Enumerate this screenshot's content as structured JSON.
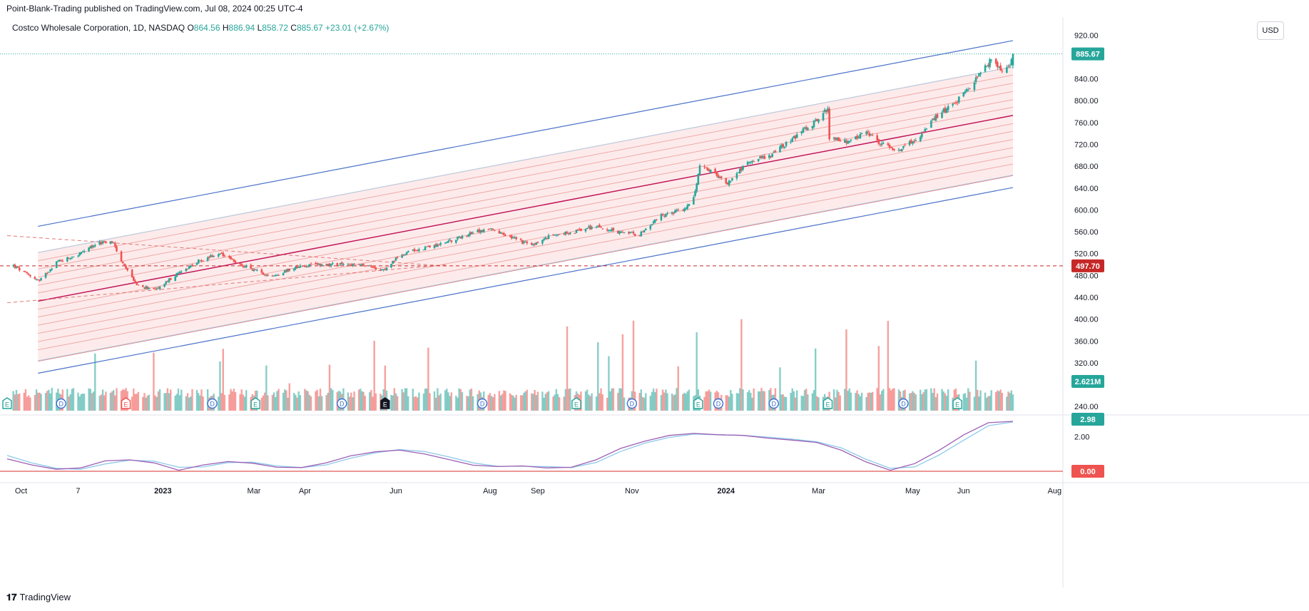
{
  "header": {
    "published_text": "Point-Blank-Trading published on TradingView.com, Jul 08, 2024 00:25 UTC-4"
  },
  "legend": {
    "symbol": "Costco Wholesale Corporation, 1D, NASDAQ",
    "open_label": "O",
    "open": "864.56",
    "high_label": "H",
    "high": "886.94",
    "low_label": "L",
    "low": "858.72",
    "close_label": "C",
    "close": "885.67",
    "change": "+23.01 (+2.67%)"
  },
  "currency": "USD",
  "footer": {
    "brand": "TradingView"
  },
  "colors": {
    "up": "#26a69a",
    "down": "#ef5350",
    "channel_outer": "#4a72c9",
    "channel_inner": "#b3d4ea",
    "regression": "#c2185b",
    "fill": "#fde8e8",
    "oscillator_a": "#9c5fb5",
    "oscillator_b": "#8ec9e8"
  },
  "chart_data": {
    "type": "candlestick",
    "price_axis": {
      "ticks": [
        "920.00",
        "880.00",
        "840.00",
        "800.00",
        "760.00",
        "720.00",
        "680.00",
        "640.00",
        "600.00",
        "560.00",
        "520.00",
        "480.00",
        "440.00",
        "400.00",
        "360.00",
        "320.00",
        "280.00",
        "240.00"
      ],
      "range": [
        220,
        935
      ]
    },
    "time_axis": {
      "ticks": [
        "Oct",
        "7",
        "2023",
        "Mar",
        "Apr",
        "Jun",
        "Aug",
        "Sep",
        "Nov",
        "2024",
        "Mar",
        "May",
        "Jun",
        "Aug"
      ]
    },
    "price_path": [
      [
        "2022-09-26",
        498
      ],
      [
        "2022-10-03",
        485
      ],
      [
        "2022-10-13",
        470
      ],
      [
        "2022-10-24",
        505
      ],
      [
        "2022-11-07",
        518
      ],
      [
        "2022-11-21",
        540
      ],
      [
        "2022-11-30",
        540
      ],
      [
        "2022-12-05",
        505
      ],
      [
        "2022-12-16",
        460
      ],
      [
        "2022-12-28",
        455
      ],
      [
        "2023-01-09",
        480
      ],
      [
        "2023-01-23",
        505
      ],
      [
        "2023-02-06",
        520
      ],
      [
        "2023-02-20",
        500
      ],
      [
        "2023-03-06",
        485
      ],
      [
        "2023-03-13",
        478
      ],
      [
        "2023-03-27",
        495
      ],
      [
        "2023-04-10",
        500
      ],
      [
        "2023-04-24",
        500
      ],
      [
        "2023-05-08",
        500
      ],
      [
        "2023-05-22",
        492
      ],
      [
        "2023-05-26",
        495
      ],
      [
        "2023-06-05",
        520
      ],
      [
        "2023-06-19",
        530
      ],
      [
        "2023-07-03",
        540
      ],
      [
        "2023-07-17",
        555
      ],
      [
        "2023-07-31",
        565
      ],
      [
        "2023-08-14",
        550
      ],
      [
        "2023-08-28",
        535
      ],
      [
        "2023-09-11",
        555
      ],
      [
        "2023-09-25",
        560
      ],
      [
        "2023-10-09",
        570
      ],
      [
        "2023-10-23",
        560
      ],
      [
        "2023-11-06",
        555
      ],
      [
        "2023-11-20",
        590
      ],
      [
        "2023-12-04",
        600
      ],
      [
        "2023-12-11",
        620
      ],
      [
        "2023-12-15",
        680
      ],
      [
        "2023-12-22",
        670
      ],
      [
        "2024-01-02",
        650
      ],
      [
        "2024-01-16",
        690
      ],
      [
        "2024-01-30",
        700
      ],
      [
        "2024-02-13",
        730
      ],
      [
        "2024-02-27",
        760
      ],
      [
        "2024-03-07",
        785
      ],
      [
        "2024-03-08",
        730
      ],
      [
        "2024-03-18",
        725
      ],
      [
        "2024-04-02",
        740
      ],
      [
        "2024-04-10",
        720
      ],
      [
        "2024-04-22",
        710
      ],
      [
        "2024-05-06",
        735
      ],
      [
        "2024-05-16",
        770
      ],
      [
        "2024-05-30",
        800
      ],
      [
        "2024-06-10",
        835
      ],
      [
        "2024-06-17",
        860
      ],
      [
        "2024-06-21",
        875
      ],
      [
        "2024-06-28",
        855
      ],
      [
        "2024-07-03",
        863
      ],
      [
        "2024-07-05",
        885.67
      ]
    ],
    "price_tags": {
      "last": "885.67",
      "reference": "497.70"
    },
    "reference_level": 497.7,
    "volume_tag": "2.621M",
    "oscillator": {
      "tags": [
        "2.98",
        "0.00"
      ],
      "tick": "2.00",
      "zero_level": 0,
      "series_a": [
        [
          0,
          3.7
        ],
        [
          4,
          1.9
        ],
        [
          8,
          0.6
        ],
        [
          12,
          1.0
        ],
        [
          16,
          3.1
        ],
        [
          20,
          3.4
        ],
        [
          24,
          2.5
        ],
        [
          28,
          0.3
        ],
        [
          32,
          1.9
        ],
        [
          36,
          2.9
        ],
        [
          40,
          2.4
        ],
        [
          44,
          1.2
        ],
        [
          48,
          1.1
        ],
        [
          52,
          2.5
        ],
        [
          56,
          4.6
        ],
        [
          60,
          5.8
        ],
        [
          64,
          6.3
        ],
        [
          68,
          5.2
        ],
        [
          72,
          3.5
        ],
        [
          76,
          1.8
        ],
        [
          80,
          1.4
        ],
        [
          84,
          1.6
        ],
        [
          88,
          1.0
        ],
        [
          92,
          1.2
        ],
        [
          96,
          3.4
        ],
        [
          100,
          6.8
        ],
        [
          104,
          9.0
        ],
        [
          108,
          10.7
        ],
        [
          112,
          11.3
        ],
        [
          116,
          10.9
        ],
        [
          120,
          10.7
        ],
        [
          124,
          9.9
        ],
        [
          128,
          9.3
        ],
        [
          132,
          8.6
        ],
        [
          136,
          6.3
        ],
        [
          140,
          2.8
        ],
        [
          144,
          0.3
        ],
        [
          148,
          2.3
        ],
        [
          152,
          6.3
        ],
        [
          156,
          10.9
        ],
        [
          160,
          14.5
        ],
        [
          164,
          14.9
        ]
      ],
      "series_b": [
        [
          0,
          4.7
        ],
        [
          4,
          2.5
        ],
        [
          8,
          0.9
        ],
        [
          12,
          0.6
        ],
        [
          16,
          2.2
        ],
        [
          20,
          3.3
        ],
        [
          24,
          3.0
        ],
        [
          28,
          1.2
        ],
        [
          32,
          1.3
        ],
        [
          36,
          2.6
        ],
        [
          40,
          2.7
        ],
        [
          44,
          1.6
        ],
        [
          48,
          1.1
        ],
        [
          52,
          1.9
        ],
        [
          56,
          3.9
        ],
        [
          60,
          5.5
        ],
        [
          64,
          6.5
        ],
        [
          68,
          5.9
        ],
        [
          72,
          4.3
        ],
        [
          76,
          2.5
        ],
        [
          80,
          1.5
        ],
        [
          84,
          1.5
        ],
        [
          88,
          1.4
        ],
        [
          92,
          1.1
        ],
        [
          96,
          2.6
        ],
        [
          100,
          5.9
        ],
        [
          104,
          8.4
        ],
        [
          108,
          10.1
        ],
        [
          112,
          11.1
        ],
        [
          116,
          10.9
        ],
        [
          120,
          10.7
        ],
        [
          124,
          10.2
        ],
        [
          128,
          9.6
        ],
        [
          132,
          8.8
        ],
        [
          136,
          7.0
        ],
        [
          140,
          3.6
        ],
        [
          144,
          0.9
        ],
        [
          148,
          1.3
        ],
        [
          152,
          4.9
        ],
        [
          156,
          9.3
        ],
        [
          160,
          13.6
        ],
        [
          164,
          14.7
        ]
      ]
    },
    "events": [
      {
        "t": "2022-09-22",
        "kind": "E",
        "c": "#26a69a"
      },
      {
        "t": "2022-10-27",
        "kind": "D",
        "c": "#3f6fd1"
      },
      {
        "t": "2022-12-08",
        "kind": "E",
        "c": "#ef5350"
      },
      {
        "t": "2023-02-02",
        "kind": "D",
        "c": "#3f6fd1"
      },
      {
        "t": "2023-03-02",
        "kind": "E",
        "c": "#26a69a"
      },
      {
        "t": "2023-04-27",
        "kind": "D",
        "c": "#3f6fd1"
      },
      {
        "t": "2023-05-25",
        "kind": "E",
        "c": "#131722"
      },
      {
        "t": "2023-07-27",
        "kind": "D",
        "c": "#3f6fd1"
      },
      {
        "t": "2023-09-26",
        "kind": "E",
        "c": "#26a69a"
      },
      {
        "t": "2023-11-01",
        "kind": "D",
        "c": "#3f6fd1"
      },
      {
        "t": "2023-12-14",
        "kind": "E",
        "c": "#26a69a"
      },
      {
        "t": "2023-12-27",
        "kind": "D",
        "c": "#3f6fd1"
      },
      {
        "t": "2024-02-01",
        "kind": "D",
        "c": "#3f6fd1"
      },
      {
        "t": "2024-03-07",
        "kind": "E",
        "c": "#26a69a"
      },
      {
        "t": "2024-04-25",
        "kind": "D",
        "c": "#3f6fd1"
      },
      {
        "t": "2024-05-30",
        "kind": "E",
        "c": "#26a69a"
      }
    ],
    "channel": {
      "regression_start": [
        "2022-10-12",
        433
      ],
      "regression_end": [
        "2024-07-05",
        773
      ],
      "bands": [
        -110,
        -89,
        -74,
        -59,
        -44,
        -29,
        -15,
        15,
        29,
        44,
        59,
        74,
        89
      ],
      "inner_blue": [
        -109,
        89
      ],
      "outer_blue": [
        -132,
        137
      ]
    },
    "triangle_lines": [
      {
        "from": [
          "2022-09-22",
          553
        ],
        "to": [
          "2023-07-05",
          497
        ]
      },
      {
        "from": [
          "2022-09-22",
          430
        ],
        "to": [
          "2023-07-05",
          500
        ]
      }
    ]
  }
}
